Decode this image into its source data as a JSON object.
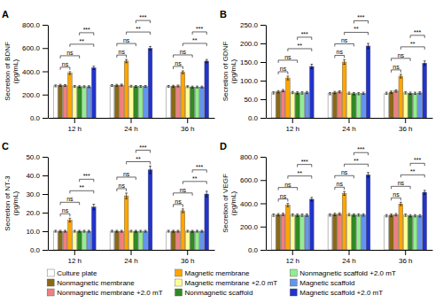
{
  "chart_data": [
    {
      "type": "bar",
      "title": "A",
      "ylabel": "Secretion of BDNF\n(pg/mL)",
      "categories": [
        "12 h",
        "24 h",
        "36 h"
      ],
      "ylim": [
        0,
        800
      ],
      "yticks": [
        {
          "value": 0,
          "label": "0.0"
        },
        {
          "value": 200,
          "label": "200.0"
        },
        {
          "value": 400,
          "label": "400.0"
        },
        {
          "value": 600,
          "label": "600.0"
        },
        {
          "value": 800,
          "label": "800.0"
        }
      ],
      "grid": false,
      "legend": "bottom",
      "series": [
        {
          "name": "Culture plate",
          "color": "#FFFFFF",
          "values": [
            275,
            278,
            270
          ],
          "errors": [
            8,
            8,
            8
          ]
        },
        {
          "name": "Nonmagnetic membrane",
          "color": "#8B6914",
          "values": [
            280,
            280,
            272
          ],
          "errors": [
            8,
            8,
            8
          ]
        },
        {
          "name": "Nonmagnetic membrane +2.0 mT",
          "color": "#F08080",
          "values": [
            278,
            282,
            274
          ],
          "errors": [
            8,
            8,
            8
          ]
        },
        {
          "name": "Magnetic membrane",
          "color": "#FFA500",
          "values": [
            385,
            488,
            392
          ],
          "errors": [
            12,
            14,
            12
          ]
        },
        {
          "name": "Magnetic membrane +2.0 mT",
          "color": "#FFFF99",
          "values": [
            270,
            272,
            268
          ],
          "errors": [
            8,
            8,
            8
          ]
        },
        {
          "name": "Nonmagnetic scaffold",
          "color": "#2E8B22",
          "values": [
            268,
            270,
            265
          ],
          "errors": [
            8,
            8,
            8
          ]
        },
        {
          "name": "Nonmagnetic scaffold +2.0 mT",
          "color": "#90EE90",
          "values": [
            268,
            270,
            265
          ],
          "errors": [
            8,
            8,
            8
          ]
        },
        {
          "name": "Magnetic scaffold",
          "color": "#6495ED",
          "values": [
            268,
            270,
            265
          ],
          "errors": [
            8,
            8,
            8
          ]
        },
        {
          "name": "Magnetic scaffold +2.0 mT",
          "color": "#2233CC",
          "values": [
            430,
            598,
            488
          ],
          "errors": [
            14,
            16,
            14
          ]
        }
      ],
      "annotations": [
        {
          "category": "12 h",
          "from": 1,
          "to": 3,
          "text": "ns"
        },
        {
          "category": "12 h",
          "from": 1,
          "to": 5,
          "text": "ns"
        },
        {
          "category": "12 h",
          "from": 3,
          "to": 8,
          "text": "**"
        },
        {
          "category": "12 h",
          "from": 5,
          "to": 8,
          "text": "***"
        },
        {
          "category": "24 h",
          "from": 1,
          "to": 3,
          "text": "ns"
        },
        {
          "category": "24 h",
          "from": 1,
          "to": 5,
          "text": "ns"
        },
        {
          "category": "24 h",
          "from": 3,
          "to": 8,
          "text": "**"
        },
        {
          "category": "24 h",
          "from": 5,
          "to": 8,
          "text": "***"
        },
        {
          "category": "36 h",
          "from": 1,
          "to": 3,
          "text": "ns"
        },
        {
          "category": "36 h",
          "from": 1,
          "to": 5,
          "text": "ns"
        },
        {
          "category": "36 h",
          "from": 3,
          "to": 8,
          "text": "**"
        },
        {
          "category": "36 h",
          "from": 5,
          "to": 8,
          "text": "***"
        }
      ]
    },
    {
      "type": "bar",
      "title": "B",
      "ylabel": "Secretion of GDNF\n(pg/mL)",
      "categories": [
        "12 h",
        "24 h",
        "36 h"
      ],
      "ylim": [
        0,
        250
      ],
      "yticks": [
        {
          "value": 0,
          "label": "0.0"
        },
        {
          "value": 50,
          "label": "50.0"
        },
        {
          "value": 100,
          "label": "100.0"
        },
        {
          "value": 150,
          "label": "150.0"
        },
        {
          "value": 200,
          "label": "200.0"
        },
        {
          "value": 250,
          "label": "250.0"
        }
      ],
      "grid": false,
      "series": [
        {
          "color": "#FFFFFF",
          "values": [
            67,
            65,
            66
          ],
          "errors": [
            3,
            3,
            3
          ]
        },
        {
          "color": "#8B6914",
          "values": [
            70,
            68,
            69
          ],
          "errors": [
            3,
            3,
            3
          ]
        },
        {
          "color": "#F08080",
          "values": [
            73,
            70,
            72
          ],
          "errors": [
            3,
            3,
            3
          ]
        },
        {
          "color": "#FFA500",
          "values": [
            107,
            150,
            112
          ],
          "errors": [
            5,
            6,
            5
          ]
        },
        {
          "color": "#FFFF99",
          "values": [
            68,
            66,
            67
          ],
          "errors": [
            3,
            3,
            3
          ]
        },
        {
          "color": "#2E8B22",
          "values": [
            67,
            65,
            66
          ],
          "errors": [
            3,
            3,
            3
          ]
        },
        {
          "color": "#90EE90",
          "values": [
            67,
            65,
            66
          ],
          "errors": [
            3,
            3,
            3
          ]
        },
        {
          "color": "#6495ED",
          "values": [
            68,
            66,
            67
          ],
          "errors": [
            3,
            3,
            3
          ]
        },
        {
          "color": "#2233CC",
          "values": [
            138,
            193,
            147
          ],
          "errors": [
            6,
            7,
            6
          ]
        }
      ],
      "annotations": [
        {
          "category": "12 h",
          "from": 1,
          "to": 3,
          "text": "ns"
        },
        {
          "category": "12 h",
          "from": 1,
          "to": 5,
          "text": "ns"
        },
        {
          "category": "12 h",
          "from": 3,
          "to": 8,
          "text": "**"
        },
        {
          "category": "12 h",
          "from": 5,
          "to": 8,
          "text": "***"
        },
        {
          "category": "24 h",
          "from": 1,
          "to": 3,
          "text": "ns"
        },
        {
          "category": "24 h",
          "from": 1,
          "to": 5,
          "text": "ns"
        },
        {
          "category": "24 h",
          "from": 3,
          "to": 8,
          "text": "**"
        },
        {
          "category": "24 h",
          "from": 5,
          "to": 8,
          "text": "***"
        },
        {
          "category": "36 h",
          "from": 1,
          "to": 3,
          "text": "ns"
        },
        {
          "category": "36 h",
          "from": 1,
          "to": 5,
          "text": "ns"
        },
        {
          "category": "36 h",
          "from": 3,
          "to": 8,
          "text": "**"
        },
        {
          "category": "36 h",
          "from": 5,
          "to": 8,
          "text": "***"
        }
      ]
    },
    {
      "type": "bar",
      "title": "C",
      "ylabel": "Secretion of NT-3\n(pg/mL)",
      "categories": [
        "12 h",
        "24 h",
        "36 h"
      ],
      "ylim": [
        0,
        50
      ],
      "yticks": [
        {
          "value": 0,
          "label": "0.0"
        },
        {
          "value": 10,
          "label": "10.0"
        },
        {
          "value": 20,
          "label": "20.0"
        },
        {
          "value": 30,
          "label": "30.0"
        },
        {
          "value": 40,
          "label": "40.0"
        },
        {
          "value": 50,
          "label": "50.0"
        }
      ],
      "grid": false,
      "series": [
        {
          "color": "#FFFFFF",
          "values": [
            10,
            10,
            10
          ],
          "errors": [
            0.5,
            0.5,
            0.5
          ]
        },
        {
          "color": "#8B6914",
          "values": [
            10,
            10,
            10
          ],
          "errors": [
            0.5,
            0.5,
            0.5
          ]
        },
        {
          "color": "#F08080",
          "values": [
            10,
            10,
            10
          ],
          "errors": [
            0.5,
            0.5,
            0.5
          ]
        },
        {
          "color": "#FFA500",
          "values": [
            16,
            29,
            21
          ],
          "errors": [
            1.0,
            1.5,
            1.0
          ]
        },
        {
          "color": "#FFFF99",
          "values": [
            10,
            10,
            10
          ],
          "errors": [
            0.5,
            0.5,
            0.5
          ]
        },
        {
          "color": "#2E8B22",
          "values": [
            10,
            10,
            10
          ],
          "errors": [
            0.5,
            0.5,
            0.5
          ]
        },
        {
          "color": "#90EE90",
          "values": [
            10,
            10,
            10
          ],
          "errors": [
            0.5,
            0.5,
            0.5
          ]
        },
        {
          "color": "#6495ED",
          "values": [
            10,
            10,
            10
          ],
          "errors": [
            0.5,
            0.5,
            0.5
          ]
        },
        {
          "color": "#2233CC",
          "values": [
            23,
            43,
            30
          ],
          "errors": [
            1.5,
            2.0,
            1.5
          ]
        }
      ],
      "annotations": [
        {
          "category": "12 h",
          "from": 1,
          "to": 3,
          "text": "ns"
        },
        {
          "category": "12 h",
          "from": 1,
          "to": 5,
          "text": "ns"
        },
        {
          "category": "12 h",
          "from": 3,
          "to": 8,
          "text": "**"
        },
        {
          "category": "12 h",
          "from": 5,
          "to": 8,
          "text": "***"
        },
        {
          "category": "24 h",
          "from": 1,
          "to": 3,
          "text": "ns"
        },
        {
          "category": "24 h",
          "from": 1,
          "to": 5,
          "text": "ns"
        },
        {
          "category": "24 h",
          "from": 3,
          "to": 8,
          "text": "**"
        },
        {
          "category": "24 h",
          "from": 5,
          "to": 8,
          "text": "***"
        },
        {
          "category": "36 h",
          "from": 1,
          "to": 3,
          "text": "ns"
        },
        {
          "category": "36 h",
          "from": 1,
          "to": 5,
          "text": "ns"
        },
        {
          "category": "36 h",
          "from": 3,
          "to": 8,
          "text": "**"
        },
        {
          "category": "36 h",
          "from": 5,
          "to": 8,
          "text": "***"
        }
      ]
    },
    {
      "type": "bar",
      "title": "D",
      "ylabel": "Secretion of VEGF\n(pg/mL)",
      "categories": [
        "12 h",
        "24 h",
        "36 h"
      ],
      "ylim": [
        0,
        800
      ],
      "yticks": [
        {
          "value": 0,
          "label": "0.0"
        },
        {
          "value": 200,
          "label": "200.0"
        },
        {
          "value": 400,
          "label": "400.0"
        },
        {
          "value": 600,
          "label": "600.0"
        },
        {
          "value": 800,
          "label": "800.0"
        }
      ],
      "grid": false,
      "series": [
        {
          "color": "#FFFFFF",
          "values": [
            298,
            300,
            293
          ],
          "errors": [
            10,
            10,
            10
          ]
        },
        {
          "color": "#8B6914",
          "values": [
            302,
            305,
            298
          ],
          "errors": [
            10,
            10,
            10
          ]
        },
        {
          "color": "#F08080",
          "values": [
            305,
            308,
            302
          ],
          "errors": [
            10,
            10,
            10
          ]
        },
        {
          "color": "#FFA500",
          "values": [
            385,
            485,
            395
          ],
          "errors": [
            14,
            16,
            14
          ]
        },
        {
          "color": "#FFFF99",
          "values": [
            300,
            302,
            298
          ],
          "errors": [
            10,
            10,
            10
          ]
        },
        {
          "color": "#2E8B22",
          "values": [
            298,
            300,
            293
          ],
          "errors": [
            10,
            10,
            10
          ]
        },
        {
          "color": "#90EE90",
          "values": [
            298,
            300,
            293
          ],
          "errors": [
            10,
            10,
            10
          ]
        },
        {
          "color": "#6495ED",
          "values": [
            298,
            300,
            293
          ],
          "errors": [
            10,
            10,
            10
          ]
        },
        {
          "color": "#2233CC",
          "values": [
            435,
            645,
            495
          ],
          "errors": [
            16,
            20,
            17
          ]
        }
      ],
      "annotations": [
        {
          "category": "12 h",
          "from": 1,
          "to": 3,
          "text": "ns"
        },
        {
          "category": "12 h",
          "from": 1,
          "to": 5,
          "text": "ns"
        },
        {
          "category": "12 h",
          "from": 3,
          "to": 8,
          "text": "**"
        },
        {
          "category": "12 h",
          "from": 5,
          "to": 8,
          "text": "***"
        },
        {
          "category": "24 h",
          "from": 1,
          "to": 3,
          "text": "ns"
        },
        {
          "category": "24 h",
          "from": 1,
          "to": 5,
          "text": "ns"
        },
        {
          "category": "24 h",
          "from": 3,
          "to": 8,
          "text": "**"
        },
        {
          "category": "24 h",
          "from": 5,
          "to": 8,
          "text": "***"
        },
        {
          "category": "36 h",
          "from": 1,
          "to": 3,
          "text": "ns"
        },
        {
          "category": "36 h",
          "from": 1,
          "to": 5,
          "text": "ns"
        },
        {
          "category": "36 h",
          "from": 3,
          "to": 8,
          "text": "**"
        },
        {
          "category": "36 h",
          "from": 5,
          "to": 8,
          "text": "***"
        }
      ]
    }
  ]
}
